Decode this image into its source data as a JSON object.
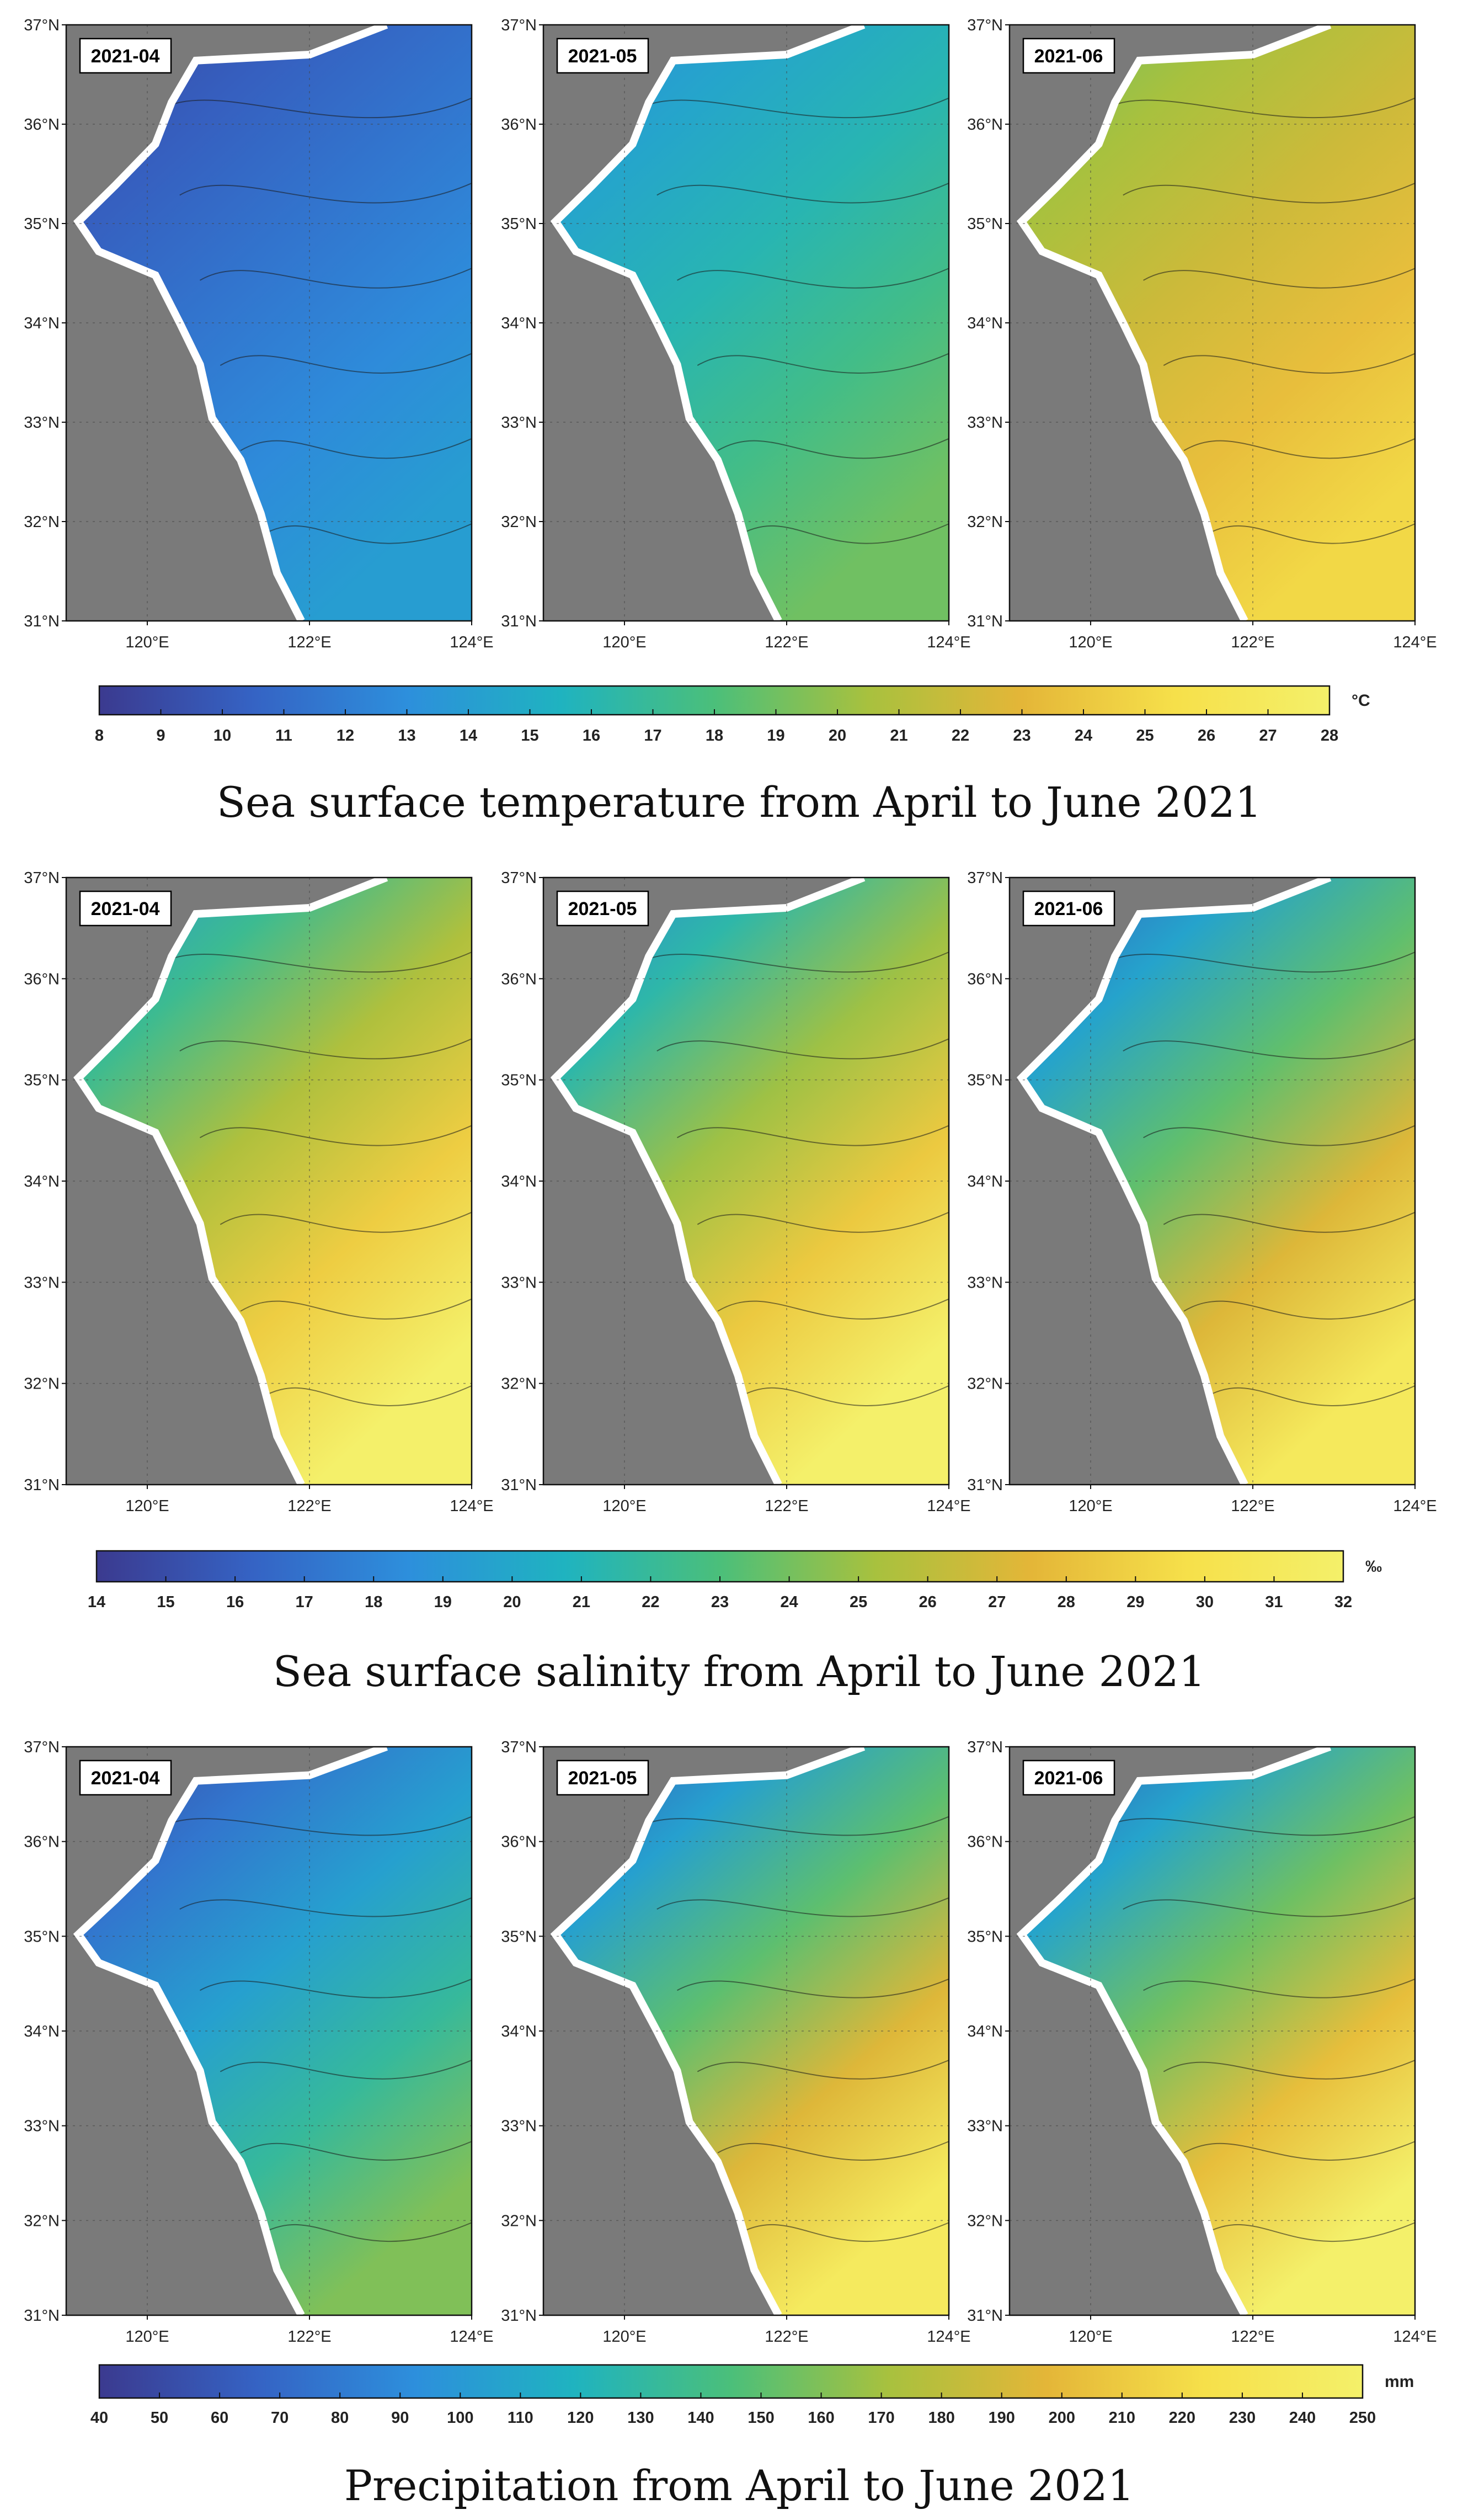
{
  "chart_data": [
    {
      "type": "heatmap",
      "title": "Sea surface temperature from April to June 2021",
      "unit": "°C",
      "panels": [
        "2021-04",
        "2021-05",
        "2021-06"
      ],
      "xticks": [
        "120°E",
        "122°E",
        "124°E"
      ],
      "yticks": [
        "37°N",
        "36°N",
        "35°N",
        "34°N",
        "33°N",
        "32°N",
        "31°N"
      ],
      "xlim": [
        119,
        124
      ],
      "ylim": [
        31,
        37
      ],
      "colorbar_range": [
        8,
        28
      ],
      "colorbar_ticks": [
        "8",
        "9",
        "10",
        "11",
        "12",
        "13",
        "14",
        "15",
        "16",
        "17",
        "18",
        "19",
        "20",
        "21",
        "22",
        "23",
        "24",
        "25",
        "26",
        "27",
        "28"
      ],
      "land_color": "#7a7a7a",
      "colormap": [
        "#3b3a8f",
        "#3563c4",
        "#2d8fdc",
        "#1fb3c0",
        "#4bbf7a",
        "#a8c13e",
        "#e4b638",
        "#f6e04a",
        "#f4f06a"
      ],
      "panel_ranges": [
        [
          9,
          14
        ],
        [
          13,
          19
        ],
        [
          19,
          25
        ]
      ]
    },
    {
      "type": "heatmap",
      "title": "Sea surface salinity from April to June 2021",
      "unit": "‰",
      "panels": [
        "2021-04",
        "2021-05",
        "2021-06"
      ],
      "xticks": [
        "120°E",
        "122°E",
        "124°E"
      ],
      "yticks": [
        "37°N",
        "36°N",
        "35°N",
        "34°N",
        "33°N",
        "32°N",
        "31°N"
      ],
      "xlim": [
        119,
        124
      ],
      "ylim": [
        31,
        37
      ],
      "colorbar_range": [
        14,
        32
      ],
      "colorbar_ticks": [
        "14",
        "15",
        "16",
        "17",
        "18",
        "19",
        "20",
        "21",
        "22",
        "23",
        "24",
        "25",
        "26",
        "27",
        "28",
        "29",
        "30",
        "31",
        "32"
      ],
      "land_color": "#7a7a7a",
      "colormap": [
        "#3b3a8f",
        "#3563c4",
        "#2d8fdc",
        "#1fb3c0",
        "#4bbf7a",
        "#a8c13e",
        "#e4b638",
        "#f6e04a",
        "#f4f06a"
      ],
      "panel_ranges": [
        [
          19,
          32
        ],
        [
          18,
          32
        ],
        [
          16,
          31
        ]
      ]
    },
    {
      "type": "heatmap",
      "title": "Precipitation from April to June 2021",
      "unit": "mm",
      "panels": [
        "2021-04",
        "2021-05",
        "2021-06"
      ],
      "xticks": [
        "120°E",
        "122°E",
        "124°E"
      ],
      "yticks": [
        "37°N",
        "36°N",
        "35°N",
        "34°N",
        "33°N",
        "32°N",
        "31°N"
      ],
      "xlim": [
        119,
        124
      ],
      "ylim": [
        31,
        37
      ],
      "colorbar_range": [
        40,
        250
      ],
      "colorbar_ticks": [
        "40",
        "50",
        "60",
        "70",
        "80",
        "90",
        "100",
        "110",
        "120",
        "130",
        "140",
        "150",
        "160",
        "170",
        "180",
        "190",
        "200",
        "210",
        "220",
        "230",
        "240",
        "250"
      ],
      "land_color": "#7a7a7a",
      "colormap": [
        "#3b3a8f",
        "#3563c4",
        "#2d8fdc",
        "#1fb3c0",
        "#4bbf7a",
        "#a8c13e",
        "#e4b638",
        "#f6e04a",
        "#f4f06a"
      ],
      "panel_ranges": [
        [
          50,
          160
        ],
        [
          60,
          240
        ],
        [
          60,
          250
        ]
      ]
    }
  ]
}
